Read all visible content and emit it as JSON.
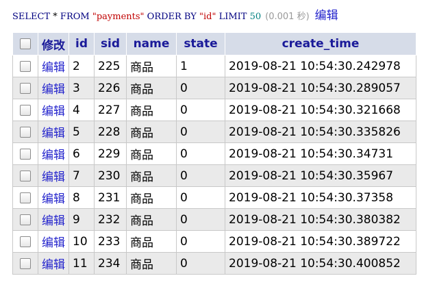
{
  "query": {
    "select_kw": "SELECT",
    "star": "*",
    "from_kw": "FROM",
    "table": "\"payments\"",
    "order_kw": "ORDER BY",
    "order_col": "\"id\"",
    "limit_kw": "LIMIT",
    "limit_val": "50",
    "timing": "(0.001 秒)",
    "edit_label": "编辑"
  },
  "table": {
    "header": {
      "edit_label": "修改",
      "columns": [
        "id",
        "sid",
        "name",
        "state",
        "create_time"
      ]
    },
    "row_edit_label": "编辑",
    "rows": [
      {
        "id": "2",
        "sid": "225",
        "name": "商品",
        "state": "1",
        "create_time": "2019-08-21 10:54:30.242978"
      },
      {
        "id": "3",
        "sid": "226",
        "name": "商品",
        "state": "0",
        "create_time": "2019-08-21 10:54:30.289057"
      },
      {
        "id": "4",
        "sid": "227",
        "name": "商品",
        "state": "0",
        "create_time": "2019-08-21 10:54:30.321668"
      },
      {
        "id": "5",
        "sid": "228",
        "name": "商品",
        "state": "0",
        "create_time": "2019-08-21 10:54:30.335826"
      },
      {
        "id": "6",
        "sid": "229",
        "name": "商品",
        "state": "0",
        "create_time": "2019-08-21 10:54:30.34731"
      },
      {
        "id": "7",
        "sid": "230",
        "name": "商品",
        "state": "0",
        "create_time": "2019-08-21 10:54:30.35967"
      },
      {
        "id": "8",
        "sid": "231",
        "name": "商品",
        "state": "0",
        "create_time": "2019-08-21 10:54:30.37358"
      },
      {
        "id": "9",
        "sid": "232",
        "name": "商品",
        "state": "0",
        "create_time": "2019-08-21 10:54:30.380382"
      },
      {
        "id": "10",
        "sid": "233",
        "name": "商品",
        "state": "0",
        "create_time": "2019-08-21 10:54:30.389722"
      },
      {
        "id": "11",
        "sid": "234",
        "name": "商品",
        "state": "0",
        "create_time": "2019-08-21 10:54:30.400852"
      }
    ]
  }
}
